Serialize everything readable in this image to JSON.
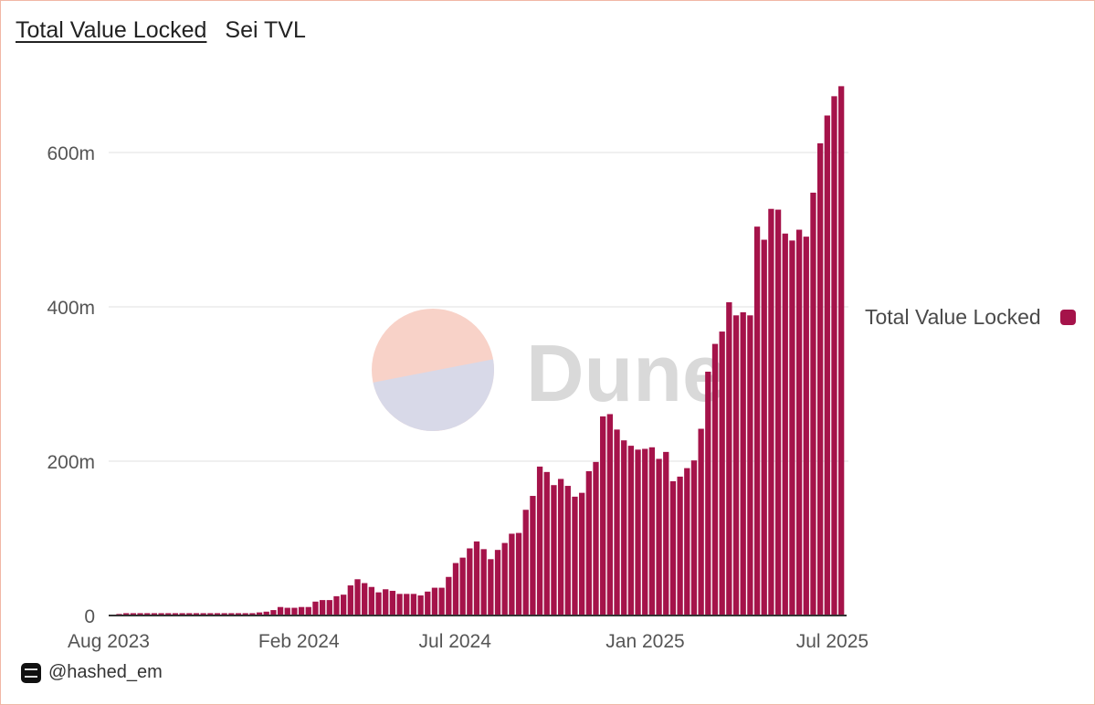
{
  "header": {
    "title": "Total Value Locked",
    "subtitle": "Sei TVL"
  },
  "legend": {
    "label": "Total Value Locked",
    "color": "#a5134a"
  },
  "footer": {
    "handle": "@hashed_em",
    "avatar_icon": "hashed-logo-icon"
  },
  "watermark": {
    "text": "Dune",
    "colors": [
      "#f8d2c8",
      "#d8d9e8",
      "#d9d9d9"
    ]
  },
  "chart_data": {
    "type": "bar",
    "title": "Total Value Locked",
    "subtitle": "Sei TVL",
    "xlabel": "",
    "ylabel": "",
    "ylim": [
      0,
      690000000
    ],
    "yticks": [
      0,
      200000000,
      400000000,
      600000000
    ],
    "ytick_labels": [
      "0",
      "200m",
      "400m",
      "600m"
    ],
    "x_range": [
      "2023-08-01",
      "2025-07-13"
    ],
    "xticks": [
      "2023-08-01",
      "2024-02-01",
      "2024-07-01",
      "2025-01-01",
      "2025-07-01"
    ],
    "xtick_labels": [
      "Aug 2023",
      "Feb 2024",
      "Jul 2024",
      "Jan 2025",
      "Jul 2025"
    ],
    "grid": true,
    "legend_position": "right",
    "bar_color": "#a5134a",
    "series": [
      {
        "name": "Total Value Locked",
        "x_start": "2023-08-01",
        "interval_days": 7,
        "values": [
          1000000,
          2000000,
          3000000,
          3000000,
          3000000,
          3000000,
          3000000,
          3000000,
          3000000,
          3000000,
          3000000,
          3000000,
          3000000,
          3000000,
          3000000,
          3000000,
          3000000,
          3000000,
          3000000,
          3000000,
          3000000,
          4000000,
          5000000,
          7000000,
          11000000,
          10000000,
          10000000,
          11000000,
          11000000,
          18000000,
          20000000,
          20000000,
          25000000,
          27000000,
          39000000,
          47000000,
          42000000,
          37000000,
          30000000,
          34000000,
          32000000,
          28000000,
          28000000,
          28000000,
          26000000,
          31000000,
          36000000,
          36000000,
          50000000,
          68000000,
          75000000,
          87000000,
          96000000,
          86000000,
          73000000,
          85000000,
          94000000,
          106000000,
          107000000,
          137000000,
          155000000,
          193000000,
          186000000,
          169000000,
          177000000,
          168000000,
          154000000,
          159000000,
          187000000,
          199000000,
          258000000,
          261000000,
          241000000,
          227000000,
          220000000,
          215000000,
          216000000,
          218000000,
          203000000,
          212000000,
          174000000,
          180000000,
          191000000,
          201000000,
          242000000,
          316000000,
          352000000,
          368000000,
          406000000,
          389000000,
          393000000,
          389000000,
          504000000,
          487000000,
          527000000,
          526000000,
          495000000,
          486000000,
          500000000,
          491000000,
          548000000,
          612000000,
          648000000,
          673000000,
          686000000
        ]
      }
    ]
  }
}
